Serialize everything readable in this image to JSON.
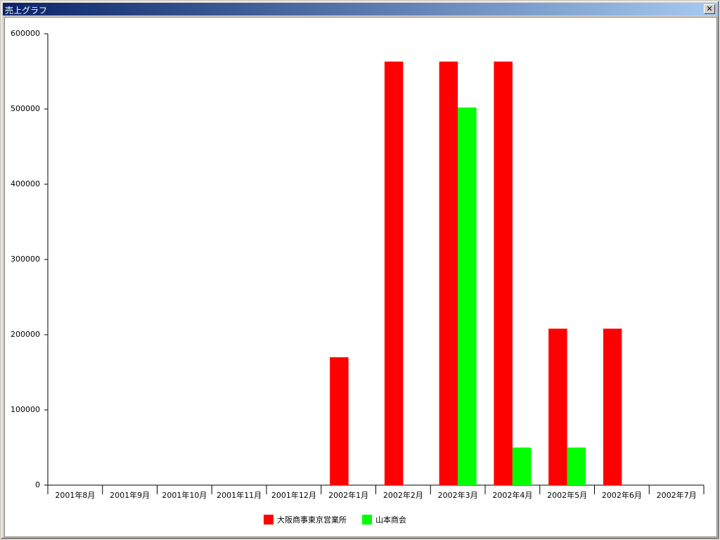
{
  "window": {
    "title": "売上グラフ"
  },
  "chart_data": {
    "type": "bar",
    "categories": [
      "2001年8月",
      "2001年9月",
      "2001年10月",
      "2001年11月",
      "2001年12月",
      "2002年1月",
      "2002年2月",
      "2002年3月",
      "2002年4月",
      "2002年5月",
      "2002年6月",
      "2002年7月"
    ],
    "series": [
      {
        "name": "大阪商事東京営業所",
        "color": "#ff0000",
        "values": [
          0,
          0,
          0,
          0,
          0,
          170000,
          563000,
          563000,
          563000,
          208000,
          208000,
          0
        ]
      },
      {
        "name": "山本商会",
        "color": "#00ff00",
        "values": [
          0,
          0,
          0,
          0,
          0,
          0,
          0,
          502000,
          50000,
          50000,
          0,
          0
        ]
      }
    ],
    "ylim": [
      0,
      600000
    ],
    "yticks": [
      0,
      100000,
      200000,
      300000,
      400000,
      500000,
      600000
    ],
    "grid": false,
    "legend": "bottom"
  }
}
